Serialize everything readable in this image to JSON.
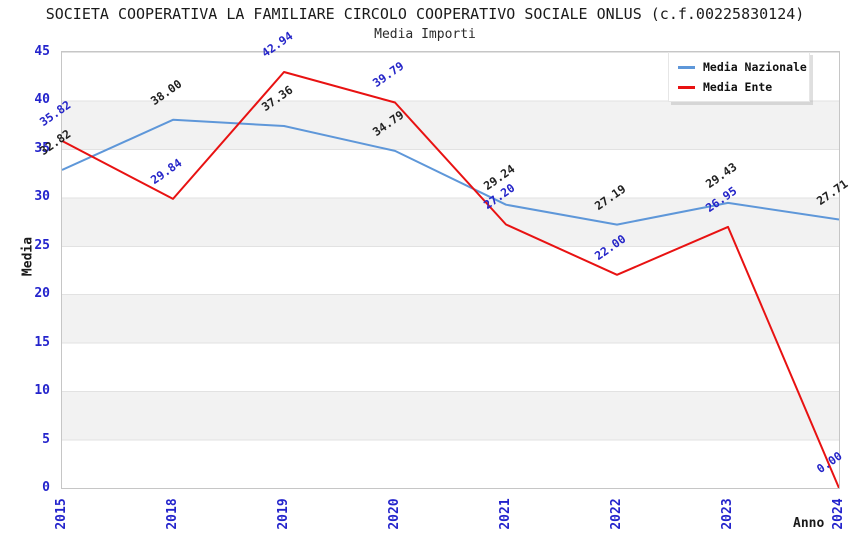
{
  "title": "SOCIETA COOPERATIVA LA FAMILIARE CIRCOLO COOPERATIVO SOCIALE ONLUS (c.f.00225830124)",
  "subtitle": "Media Importi",
  "chart_data": {
    "type": "line",
    "x": [
      "2015",
      "2018",
      "2019",
      "2020",
      "2021",
      "2022",
      "2023",
      "2024"
    ],
    "series": [
      {
        "name": "Media Nazionale",
        "color": "#5e97d9",
        "label_color": "#1f1f1f",
        "values": [
          32.82,
          38.0,
          37.36,
          34.79,
          29.24,
          27.19,
          29.43,
          27.71
        ]
      },
      {
        "name": "Media Ente",
        "color": "#e81212",
        "label_color": "#2424c8",
        "values": [
          35.82,
          29.84,
          42.94,
          39.79,
          27.2,
          22.0,
          26.95,
          0.0
        ]
      }
    ],
    "xlabel": "Anno",
    "ylabel": "Media",
    "ylim": [
      0,
      45
    ],
    "yticks": [
      0,
      5,
      10,
      15,
      20,
      25,
      30,
      35,
      40,
      45
    ],
    "grid": "horizontal-bands",
    "legend_position": "top-right"
  },
  "colors": {
    "tick_blue": "#2424cc",
    "band_gray": "#f2f2f2",
    "plot_border": "#c6c6c6"
  }
}
